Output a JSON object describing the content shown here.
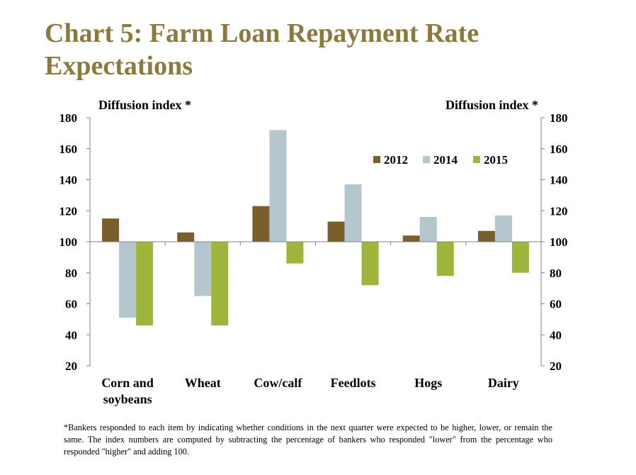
{
  "title": "Chart 5: Farm Loan Repayment Rate Expectations",
  "footnote": "*Bankers responded to each item by indicating whether conditions in the next quarter were expected to be higher, lower, or remain the same.  The index numbers are computed by subtracting the percentage of bankers who responded \"lower\" from the percentage who responded \"higher\" and adding 100.",
  "chart_data": {
    "type": "bar",
    "ylabel_left": "Diffusion index *",
    "ylabel_right": "Diffusion index *",
    "ylim": [
      20,
      180
    ],
    "yticks": [
      20,
      40,
      60,
      80,
      100,
      120,
      140,
      160,
      180
    ],
    "baseline": 100,
    "categories": [
      [
        "Corn and",
        "soybeans"
      ],
      [
        "Wheat"
      ],
      [
        "Cow/calf"
      ],
      [
        "Feedlots"
      ],
      [
        "Hogs"
      ],
      [
        "Dairy"
      ]
    ],
    "series": [
      {
        "name": "2012",
        "color": "#7A5E2C",
        "values": [
          115,
          106,
          123,
          113,
          104,
          107
        ]
      },
      {
        "name": "2014",
        "color": "#B4C6CE",
        "values": [
          51,
          65,
          172,
          137,
          116,
          117
        ]
      },
      {
        "name": "2015",
        "color": "#9DB53B",
        "values": [
          46,
          46,
          86,
          72,
          78,
          80
        ]
      }
    ],
    "legend_position": "top-right",
    "grid": false
  }
}
